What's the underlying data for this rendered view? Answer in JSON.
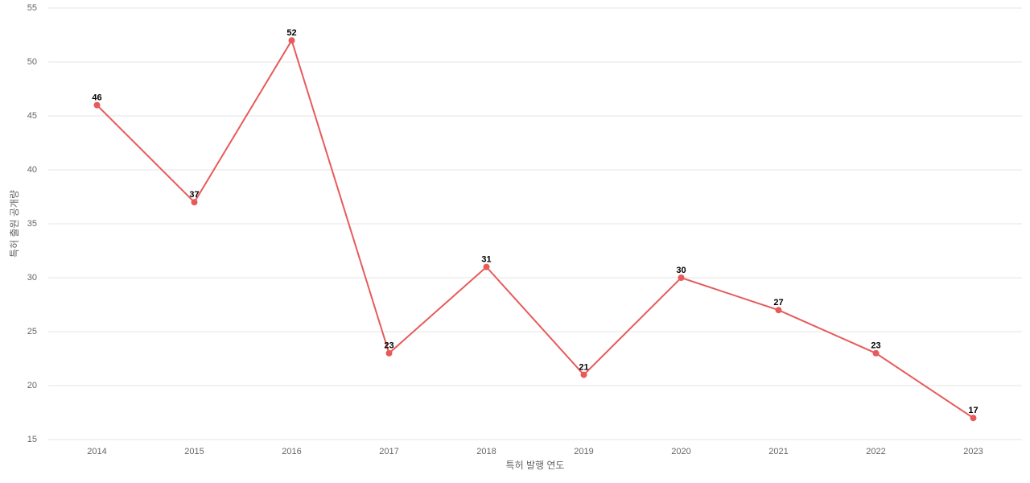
{
  "chart_data": {
    "type": "line",
    "x_label": "특허 발행 연도",
    "y_label": "특허 출원 공개량",
    "categories": [
      "2014",
      "2015",
      "2016",
      "2017",
      "2018",
      "2019",
      "2020",
      "2021",
      "2022",
      "2023"
    ],
    "series": [
      {
        "name": "특허 출원 공개량",
        "color": "#e85a5a",
        "values": [
          46,
          37,
          52,
          23,
          31,
          21,
          30,
          27,
          23,
          17
        ]
      }
    ],
    "ylim": [
      15,
      55
    ],
    "yticks": [
      15,
      20,
      25,
      30,
      35,
      40,
      45,
      50,
      55
    ],
    "grid": true
  }
}
